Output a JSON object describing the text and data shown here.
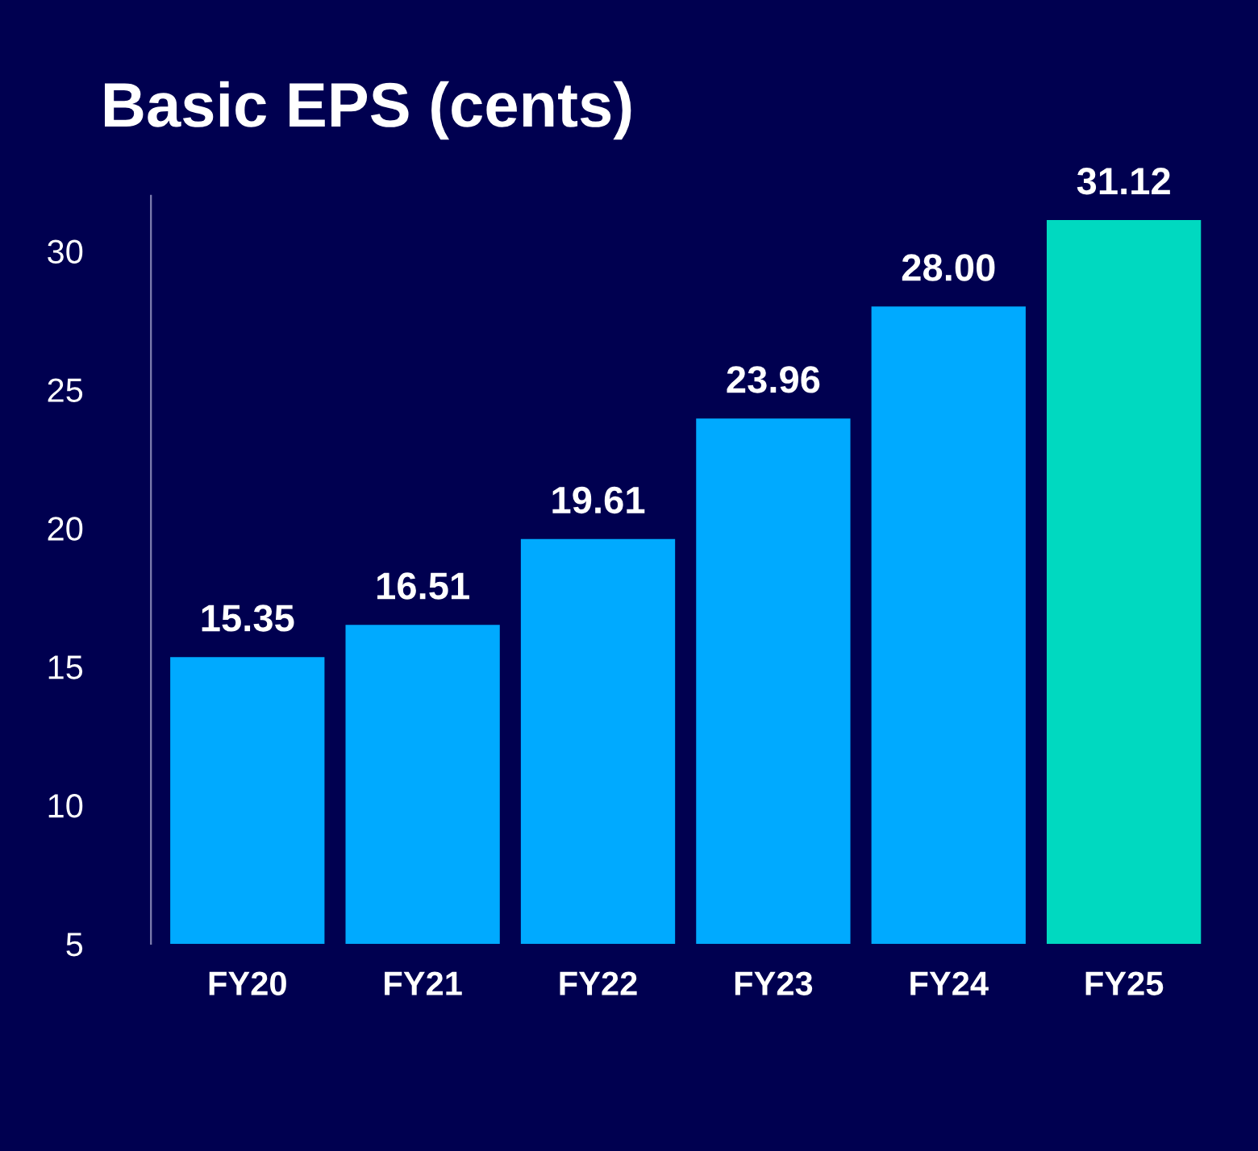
{
  "chart_data": {
    "type": "bar",
    "title": "Basic EPS (cents)",
    "categories": [
      "FY20",
      "FY21",
      "FY22",
      "FY23",
      "FY24",
      "FY25"
    ],
    "values": [
      15.35,
      16.51,
      19.61,
      23.96,
      28.0,
      31.12
    ],
    "colors": [
      "#00aaff",
      "#00aaff",
      "#00aaff",
      "#00aaff",
      "#00aaff",
      "#00d9c0"
    ],
    "value_labels": [
      "15.35",
      "16.51",
      "19.61",
      "23.96",
      "28.00",
      "31.12"
    ],
    "ylim": [
      5,
      32
    ],
    "yticks": [
      5,
      10,
      15,
      20,
      25,
      30
    ],
    "grid": false,
    "legend": false
  }
}
